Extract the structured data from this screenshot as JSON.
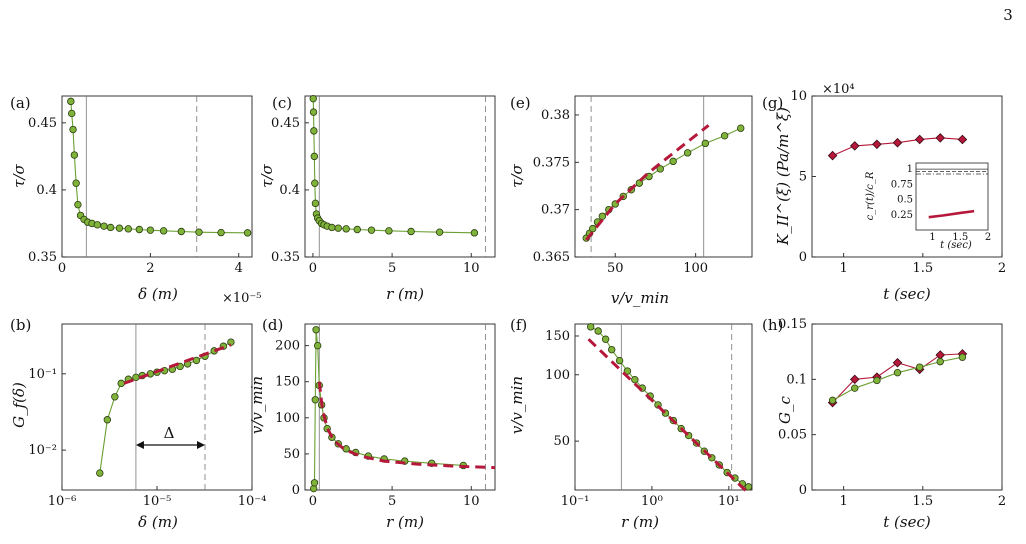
{
  "page_number": "3",
  "colors": {
    "green": "#7fb33a",
    "green_line": "#6aa032",
    "red": "#b5183a",
    "dark_red": "#8a0f2b",
    "axis": "#222222"
  },
  "panels": {
    "a": {
      "label": "(a)",
      "xlabel": "δ (m)",
      "ylabel": "τ/σ",
      "xexp": "×10⁻⁵"
    },
    "b": {
      "label": "(b)",
      "xlabel": "δ (m)",
      "ylabel": "G_f(δ)",
      "annotation": "Δ"
    },
    "c": {
      "label": "(c)",
      "xlabel": "r (m)",
      "ylabel": "τ/σ"
    },
    "d": {
      "label": "(d)",
      "xlabel": "r (m)",
      "ylabel": "v/v_min"
    },
    "e": {
      "label": "(e)",
      "xlabel": "v/v_min",
      "ylabel": "τ/σ"
    },
    "f": {
      "label": "(f)",
      "xlabel": "r (m)",
      "ylabel": "v/v_min"
    },
    "g": {
      "label": "(g)",
      "xlabel": "t (sec)",
      "ylabel": "K_II^(ξ) (Pa/m^ξ)",
      "yexp": "×10⁴",
      "inset": {
        "xlabel": "t (sec)",
        "ylabel": "c_r(t)/c_R"
      }
    },
    "h": {
      "label": "(h)",
      "xlabel": "t (sec)",
      "ylabel": "G_c"
    }
  },
  "chart_data": [
    {
      "panel": "a",
      "type": "line",
      "xlim": [
        0,
        4.3
      ],
      "ylim": [
        0.35,
        0.47
      ],
      "x_scale_note": "×10^-5",
      "xticks": [
        0,
        2,
        4
      ],
      "yticks": [
        0.35,
        0.4,
        0.45
      ],
      "vlines_solid": [
        0.55
      ],
      "vlines_dashed": [
        3.05
      ],
      "series": [
        {
          "x": [
            0.2,
            0.22,
            0.25,
            0.28,
            0.32,
            0.36,
            0.42,
            0.5,
            0.58,
            0.68,
            0.8,
            0.95,
            1.1,
            1.3,
            1.5,
            1.75,
            2.0,
            2.3,
            2.7,
            3.1,
            3.6,
            4.2
          ],
          "y": [
            0.466,
            0.457,
            0.445,
            0.426,
            0.405,
            0.389,
            0.381,
            0.378,
            0.376,
            0.375,
            0.374,
            0.373,
            0.372,
            0.3715,
            0.371,
            0.3705,
            0.37,
            0.3695,
            0.369,
            0.3685,
            0.3682,
            0.368
          ]
        }
      ]
    },
    {
      "panel": "b",
      "type": "line",
      "x_scale": "log",
      "y_scale": "log",
      "xlim": [
        1e-06,
        0.0001
      ],
      "ylim": [
        0.003,
        0.45
      ],
      "xticks": [
        "10^-6",
        "10^-5",
        "10^-4"
      ],
      "yticks": [
        "10^-2",
        "10^-1"
      ],
      "vlines_solid": [
        6e-06
      ],
      "vlines_dashed": [
        3.2e-05
      ],
      "series": [
        {
          "x": [
            2.5e-06,
            3e-06,
            3.6e-06,
            4.2e-06,
            5e-06,
            6e-06,
            7e-06,
            8.5e-06,
            1e-05,
            1.2e-05,
            1.45e-05,
            1.75e-05,
            2.1e-05,
            2.6e-05,
            3.2e-05,
            4e-05,
            5e-05,
            6e-05
          ],
          "y": [
            0.005,
            0.025,
            0.05,
            0.075,
            0.085,
            0.09,
            0.095,
            0.1,
            0.105,
            0.11,
            0.115,
            0.125,
            0.135,
            0.15,
            0.17,
            0.2,
            0.23,
            0.26
          ]
        },
        {
          "name": "fit",
          "style": "dashed-red",
          "x": [
            4.5e-06,
            6e-05
          ],
          "y": [
            0.075,
            0.24
          ]
        }
      ]
    },
    {
      "panel": "c",
      "type": "line",
      "xlim": [
        -0.5,
        11.5
      ],
      "ylim": [
        0.35,
        0.47
      ],
      "xticks": [
        0,
        5,
        10
      ],
      "yticks": [
        0.35,
        0.4,
        0.45
      ],
      "vlines_solid": [
        0.4
      ],
      "vlines_dashed": [
        10.9
      ],
      "series": [
        {
          "x": [
            0.02,
            0.04,
            0.06,
            0.09,
            0.12,
            0.16,
            0.22,
            0.3,
            0.4,
            0.55,
            0.7,
            0.9,
            1.2,
            1.6,
            2.1,
            2.8,
            3.7,
            4.8,
            6.2,
            8.0,
            10.2
          ],
          "y": [
            0.468,
            0.458,
            0.444,
            0.425,
            0.405,
            0.39,
            0.382,
            0.379,
            0.377,
            0.375,
            0.374,
            0.373,
            0.372,
            0.3715,
            0.371,
            0.3705,
            0.37,
            0.3695,
            0.369,
            0.3685,
            0.368
          ]
        }
      ]
    },
    {
      "panel": "d",
      "type": "line",
      "xlim": [
        -0.5,
        11.5
      ],
      "ylim": [
        0,
        230
      ],
      "xticks": [
        0,
        5,
        10
      ],
      "yticks": [
        0,
        50,
        100,
        150,
        200
      ],
      "vlines_solid": [
        0.4
      ],
      "vlines_dashed": [
        10.9
      ],
      "series": [
        {
          "x": [
            0.05,
            0.1,
            0.15,
            0.2,
            0.3,
            0.4,
            0.55,
            0.7,
            0.9,
            1.2,
            1.6,
            2.1,
            2.7,
            3.5,
            4.5,
            5.8,
            7.5,
            9.5
          ],
          "y": [
            2,
            10,
            125,
            222,
            200,
            145,
            118,
            100,
            85,
            73,
            64,
            57,
            52,
            47,
            43,
            40,
            37,
            34
          ]
        },
        {
          "name": "fit",
          "style": "dashed-red",
          "x": [
            0.4,
            0.6,
            0.9,
            1.3,
            2,
            3,
            4.5,
            6.5,
            9,
            11.5
          ],
          "y": [
            150,
            112,
            86,
            69,
            56,
            47,
            40,
            36,
            33,
            31
          ]
        }
      ]
    },
    {
      "panel": "e",
      "type": "line",
      "xlim": [
        25,
        135
      ],
      "ylim": [
        0.365,
        0.382
      ],
      "xticks": [
        50,
        100
      ],
      "yticks": [
        0.365,
        0.37,
        0.375,
        0.38
      ],
      "vlines_solid": [
        105
      ],
      "vlines_dashed": [
        35
      ],
      "series": [
        {
          "x": [
            32,
            34,
            36,
            39,
            42,
            46,
            50,
            55,
            60,
            65,
            71,
            78,
            86,
            95,
            106,
            118,
            128
          ],
          "y": [
            0.367,
            0.3675,
            0.368,
            0.3687,
            0.3693,
            0.37,
            0.3706,
            0.3714,
            0.3721,
            0.3728,
            0.3735,
            0.3743,
            0.3751,
            0.376,
            0.377,
            0.3778,
            0.3786
          ]
        },
        {
          "name": "fit",
          "style": "dashed-red",
          "x": [
            32,
            50,
            70,
            90,
            108
          ],
          "y": [
            0.3668,
            0.3706,
            0.3738,
            0.3765,
            0.3789
          ]
        }
      ]
    },
    {
      "panel": "f",
      "type": "line",
      "x_scale": "log",
      "y_scale": "log",
      "xlim": [
        0.1,
        20
      ],
      "ylim": [
        30,
        170
      ],
      "xticks": [
        "10^-1",
        "10^0",
        "10^1"
      ],
      "yticks": [
        50,
        100,
        150
      ],
      "vlines_solid": [
        0.4
      ],
      "vlines_dashed": [
        10.9
      ],
      "series": [
        {
          "x": [
            0.16,
            0.2,
            0.25,
            0.3,
            0.38,
            0.48,
            0.6,
            0.75,
            0.95,
            1.2,
            1.5,
            1.9,
            2.4,
            3.0,
            3.8,
            4.8,
            6.0,
            7.5,
            9.5,
            12,
            15,
            18
          ],
          "y": [
            165,
            158,
            145,
            130,
            116,
            104,
            95,
            87,
            80,
            73,
            67,
            62,
            57,
            53,
            49,
            45,
            42,
            39,
            36,
            34,
            32,
            31
          ]
        },
        {
          "name": "fit",
          "style": "dashed-red",
          "x": [
            0.15,
            18
          ],
          "y": [
            145,
            29
          ]
        }
      ]
    },
    {
      "panel": "g",
      "type": "line",
      "xlim": [
        0.8,
        2
      ],
      "ylim": [
        0,
        10
      ],
      "y_scale_note": "×10^4",
      "xticks": [
        1,
        1.5,
        2
      ],
      "yticks": [
        0,
        5,
        10
      ],
      "series": [
        {
          "x": [
            0.93,
            1.07,
            1.21,
            1.34,
            1.48,
            1.61,
            1.75
          ],
          "y": [
            6.3,
            6.9,
            7.0,
            7.1,
            7.3,
            7.4,
            7.3
          ]
        }
      ],
      "inset": {
        "xlim": [
          0.7,
          2
        ],
        "ylim": [
          0,
          1.1
        ],
        "xticks": [
          1,
          1.5,
          2
        ],
        "yticks": [
          0.25,
          0.5,
          0.75,
          1
        ],
        "hlines_solid": [
          1.0
        ],
        "hlines_dashed": [
          0.96
        ],
        "hlines_dashdot": [
          0.92
        ],
        "series": [
          {
            "x": [
              0.93,
              1.2,
              1.5,
              1.75
            ],
            "y": [
              0.21,
              0.24,
              0.28,
              0.31
            ]
          }
        ]
      }
    },
    {
      "panel": "h",
      "type": "line",
      "xlim": [
        0.8,
        2
      ],
      "ylim": [
        0,
        0.15
      ],
      "xticks": [
        1,
        1.5,
        2
      ],
      "yticks": [
        0,
        0.05,
        0.1,
        0.15
      ],
      "series": [
        {
          "name": "diamonds",
          "x": [
            0.93,
            1.07,
            1.21,
            1.34,
            1.48,
            1.61,
            1.75
          ],
          "y": [
            0.079,
            0.1,
            0.102,
            0.115,
            0.109,
            0.122,
            0.123
          ]
        },
        {
          "name": "circles",
          "x": [
            0.93,
            1.07,
            1.21,
            1.34,
            1.48,
            1.61,
            1.75
          ],
          "y": [
            0.081,
            0.092,
            0.099,
            0.106,
            0.111,
            0.116,
            0.12
          ]
        }
      ]
    }
  ]
}
